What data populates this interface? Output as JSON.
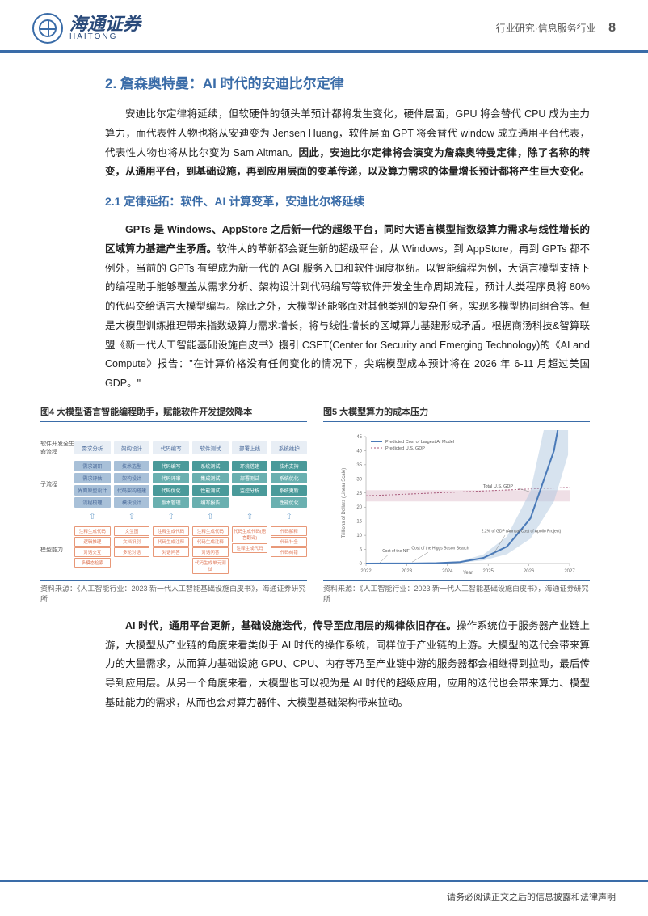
{
  "header": {
    "logo_cn": "海通证券",
    "logo_en": "HAITONG",
    "breadcrumb": "行业研究·信息服务行业",
    "page_num": "8"
  },
  "section": {
    "h2": "2. 詹森奥特曼：AI 时代的安迪比尔定律",
    "p1_a": "安迪比尔定律将延续，但软硬件的领头羊预计都将发生变化，硬件层面，GPU 将会替代 CPU 成为主力算力，而代表性人物也将从安迪变为 Jensen Huang，软件层面 GPT 将会替代 window 成立通用平台代表，代表性人物也将从比尔变为 Sam Altman。",
    "p1_b": "因此，安迪比尔定律将会演变为詹森奥特曼定律，除了名称的转变，从通用平台，到基础设施，再到应用层面的变革传递，以及算力需求的体量增长预计都将产生巨大变化。",
    "h3": "2.1 定律延拓：软件、AI 计算变革，安迪比尔将延续",
    "p2_a": "GPTs 是 Windows、AppStore 之后新一代的超级平台，同时大语言模型指数级算力需求与线性增长的区域算力基建产生矛盾。",
    "p2_b": "软件大的革新都会诞生新的超级平台，从 Windows，到 AppStore，再到 GPTs 都不例外，当前的 GPTs 有望成为新一代的 AGI 服务入口和软件调度枢纽。以智能编程为例，大语言模型支持下的编程助手能够覆盖从需求分析、架构设计到代码编写等软件开发全生命周期流程，预计人类程序员将 80%的代码交给语言大模型编写。除此之外，大模型还能够面对其他类别的复杂任务，实现多模型协同组合等。但是大模型训练推理带来指数级算力需求增长，将与线性增长的区域算力基建形成矛盾。根据商汤科技&智算联盟《新一代人工智能基础设施白皮书》援引 CSET(Center for Security and Emerging Technology)的《AI and Compute》报告：\"在计算价格没有任何变化的情况下，尖端模型成本预计将在 2026 年 6-11 月超过美国 GDP。\"",
    "p3_a": "AI 时代，通用平台更新，基础设施迭代，传导至应用层的规律依旧存在。",
    "p3_b": "操作系统位于服务器产业链上游，大模型从产业链的角度来看类似于 AI 时代的操作系统，同样位于产业链的上游。大模型的迭代会带来算力的大量需求，从而算力基础设施 GPU、CPU、内存等乃至产业链中游的服务器都会相继得到拉动，最后传导到应用层。从另一个角度来看，大模型也可以视为是 AI 时代的超级应用，应用的迭代也会带来算力、模型基础能力的需求，从而也会对算力器件、大模型基础架构带来拉动。"
  },
  "fig4": {
    "title": "图4  大模型语言智能编程助手，赋能软件开发提效降本",
    "source": "资料来源：《人工智能行业：2023 新一代人工智能基础设施白皮书》，海通证券研究所",
    "row1_label": "软件开发全生命流程",
    "row2_label": "子流程",
    "row3_label": "模型能力",
    "stages": [
      "需求分析",
      "架构设计",
      "代码编写",
      "软件测试",
      "部署上线",
      "系统维护"
    ],
    "subs": [
      [
        "需求调研",
        "需求评估",
        "界面原型设计",
        "流程梳理"
      ],
      [
        "技术选型",
        "架构设计",
        "代码架构搭建",
        "模块设计"
      ],
      [
        "代码编写",
        "代码评审",
        "代码优化",
        "版本管理"
      ],
      [
        "系统测试",
        "集成测试",
        "性能测试",
        "编写报告"
      ],
      [
        "环境搭建",
        "部署测试",
        "监控分析",
        ""
      ],
      [
        "技术支持",
        "系统优化",
        "系统更新",
        "性能优化"
      ]
    ],
    "caps": [
      [
        "注释生成代码",
        "逻辑推理",
        "对话交互",
        "多模态检索"
      ],
      [
        "文生图",
        "文档识别",
        "多轮对话",
        ""
      ],
      [
        "注释生成代码",
        "代码生成注释",
        "对话问答",
        ""
      ],
      [
        "注释生成代码",
        "代码生成注释",
        "对话问答",
        "代码生成单元测试"
      ],
      [
        "代码生成代码(语言翻译)",
        "注释生成代码",
        ""
      ],
      [
        "代码解释",
        "代码补全",
        "代码纠错",
        ""
      ]
    ]
  },
  "fig5": {
    "title": "图5  大模型算力的成本压力",
    "source": "资料来源：《人工智能行业：2023 新一代人工智能基础设施白皮书》，海通证券研究所",
    "ylabel": "Trillions of Dollars (Linear Scale)",
    "xlabel": "Year",
    "xticks": [
      "2022",
      "2023",
      "2024",
      "2025",
      "2026",
      "2027"
    ],
    "yticks": [
      "0",
      "5",
      "10",
      "15",
      "20",
      "25",
      "30",
      "35",
      "40",
      "45"
    ],
    "legend1": "Predicted Cost of Largest AI Model",
    "legend2": "Predicted U.S. GDP",
    "anno_gdp": "Total U.S. GDP",
    "anno_apollo": "2.2% of GDP (Annual Cost of Apollo Project)",
    "anno_higgs": "Cost of the Higgs Boson Search",
    "anno_nif": "Cost of the NIF",
    "cost_line": [
      [
        0,
        0.01
      ],
      [
        30,
        0.02
      ],
      [
        60,
        0.05
      ],
      [
        90,
        0.15
      ],
      [
        120,
        0.5
      ],
      [
        150,
        2
      ],
      [
        180,
        6
      ],
      [
        210,
        16
      ],
      [
        240,
        40
      ],
      [
        258,
        70
      ]
    ],
    "gdp_line_y": 24,
    "gdp_slope": 0.02,
    "ylim": [
      0,
      45
    ],
    "colors": {
      "main": "#4a7ab8",
      "band": "#b0c8e0",
      "gdp_line": "#a85a7a",
      "gdp_band": "#d8b0c0",
      "axis": "#888888"
    }
  },
  "footer": "请务必阅读正文之后的信息披露和法律声明"
}
